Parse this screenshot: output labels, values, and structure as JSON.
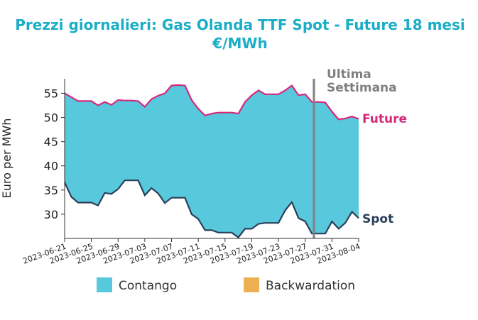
{
  "title_line1": "Prezzi giornalieri: Gas Olanda TTF Spot - Future 18 mesi",
  "title_line2": "€/MWh",
  "colors": {
    "title": "#1aadc6",
    "future": "#d6297c",
    "spot": "#2a3f5a",
    "contango": "#58c8dc",
    "backwardation": "#edb050",
    "marker": "#808080"
  },
  "chart_data": {
    "type": "area",
    "ylabel": "Euro per MWh",
    "ylim": [
      25,
      58
    ],
    "yticks": [
      30,
      35,
      40,
      45,
      50,
      55
    ],
    "xlim": [
      "2023-06-21",
      "2023-08-04"
    ],
    "xticks": [
      "2023-06-21",
      "2023-06-25",
      "2023-06-29",
      "2023-07-03",
      "2023-07-07",
      "2023-07-11",
      "2023-07-15",
      "2023-07-19",
      "2023-07-23",
      "2023-07-27",
      "2023-07-31",
      "2023-08-04"
    ],
    "x": [
      "2023-06-21",
      "2023-06-22",
      "2023-06-23",
      "2023-06-24",
      "2023-06-25",
      "2023-06-26",
      "2023-06-27",
      "2023-06-28",
      "2023-06-29",
      "2023-06-30",
      "2023-07-01",
      "2023-07-02",
      "2023-07-03",
      "2023-07-04",
      "2023-07-05",
      "2023-07-06",
      "2023-07-07",
      "2023-07-08",
      "2023-07-09",
      "2023-07-10",
      "2023-07-11",
      "2023-07-12",
      "2023-07-13",
      "2023-07-14",
      "2023-07-15",
      "2023-07-16",
      "2023-07-17",
      "2023-07-18",
      "2023-07-19",
      "2023-07-20",
      "2023-07-21",
      "2023-07-22",
      "2023-07-23",
      "2023-07-24",
      "2023-07-25",
      "2023-07-26",
      "2023-07-27",
      "2023-07-28",
      "2023-07-29",
      "2023-07-30",
      "2023-07-31",
      "2023-08-01",
      "2023-08-02",
      "2023-08-03",
      "2023-08-04"
    ],
    "series": [
      {
        "name": "Future",
        "values": [
          55.0,
          54.2,
          53.4,
          53.4,
          53.4,
          52.5,
          53.2,
          52.6,
          53.6,
          53.5,
          53.5,
          53.4,
          52.2,
          53.8,
          54.5,
          55.0,
          56.6,
          56.7,
          56.6,
          53.6,
          51.8,
          50.4,
          50.8,
          51.0,
          51.0,
          51.0,
          50.8,
          53.2,
          54.6,
          55.6,
          54.8,
          54.8,
          54.8,
          55.6,
          56.6,
          54.6,
          54.8,
          53.2,
          53.2,
          53.1,
          51.2,
          49.6,
          49.8,
          50.2,
          49.7
        ]
      },
      {
        "name": "Spot",
        "values": [
          36.6,
          33.6,
          32.4,
          32.4,
          32.4,
          31.8,
          34.4,
          34.2,
          35.2,
          37.0,
          37.0,
          37.0,
          33.9,
          35.4,
          34.3,
          32.3,
          33.4,
          33.4,
          33.4,
          30.0,
          29.0,
          26.7,
          26.7,
          26.2,
          26.2,
          26.2,
          25.2,
          27.0,
          27.0,
          28.0,
          28.2,
          28.2,
          28.2,
          30.8,
          32.5,
          29.2,
          28.5,
          26.0,
          26.0,
          26.0,
          28.5,
          27.0,
          28.2,
          30.5,
          29.2
        ]
      }
    ],
    "annotations": {
      "marker_date": "2023-07-28",
      "marker_label_line1": "Ultima",
      "marker_label_line2": "Settimana",
      "future_label": "Future",
      "spot_label": "Spot"
    },
    "legend": {
      "placement": "bottom",
      "items": [
        {
          "label": "Contango",
          "color": "#58c8dc"
        },
        {
          "label": "Backwardation",
          "color": "#edb050"
        }
      ]
    },
    "grid": false
  }
}
